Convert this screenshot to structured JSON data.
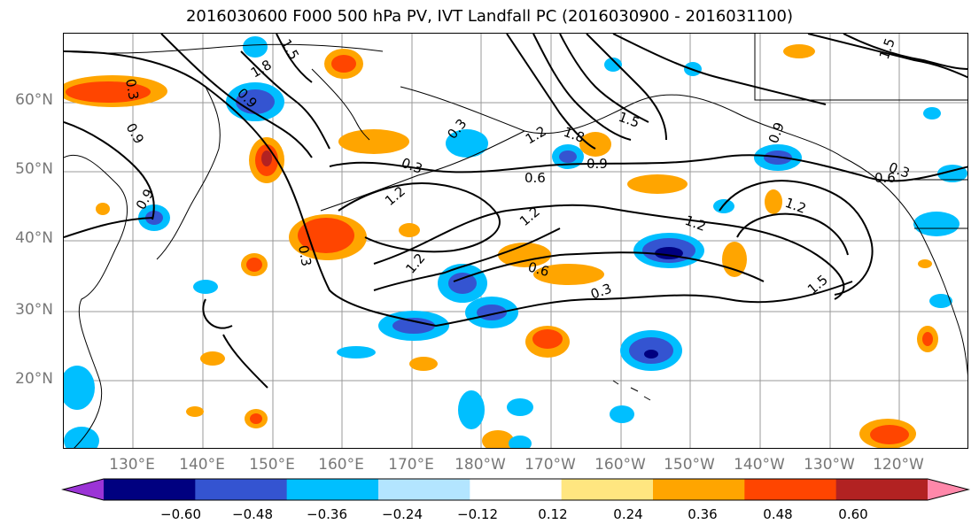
{
  "title": "2016030600 F000 500 hPa PV, IVT Landfall PC (2016030900 - 2016031100)",
  "lat_labels": [
    "60°N",
    "50°N",
    "40°N",
    "30°N",
    "20°N"
  ],
  "lon_labels": [
    "130°E",
    "140°E",
    "150°E",
    "160°E",
    "170°E",
    "180°W",
    "170°W",
    "160°W",
    "150°W",
    "140°W",
    "130°W",
    "120°W"
  ],
  "contour_labels": [
    "0.3",
    "0.9",
    "1.8",
    "1.5",
    "0.9",
    "0.3",
    "1.8",
    "1.2",
    "1.5",
    "0.3",
    "0.6",
    "0.9",
    "1.2",
    "1.2",
    "1.2",
    "0.6",
    "1.2",
    "0.3",
    "1.5",
    "0.3",
    "0.9",
    "0.3",
    "1.2",
    "0.6",
    "1.5",
    "0.9"
  ],
  "colorbar": {
    "colors": [
      "#9b34d6",
      "#000080",
      "#3454d1",
      "#00bfff",
      "#b3e5ff",
      "#ffffff",
      "#ffe680",
      "#ffa500",
      "#ff4500",
      "#b22222",
      "#ff88aa"
    ],
    "tick_labels": [
      "−0.60",
      "−0.48",
      "−0.36",
      "−0.24",
      "−0.12",
      "0.12",
      "0.24",
      "0.36",
      "0.48",
      "0.60"
    ]
  }
}
